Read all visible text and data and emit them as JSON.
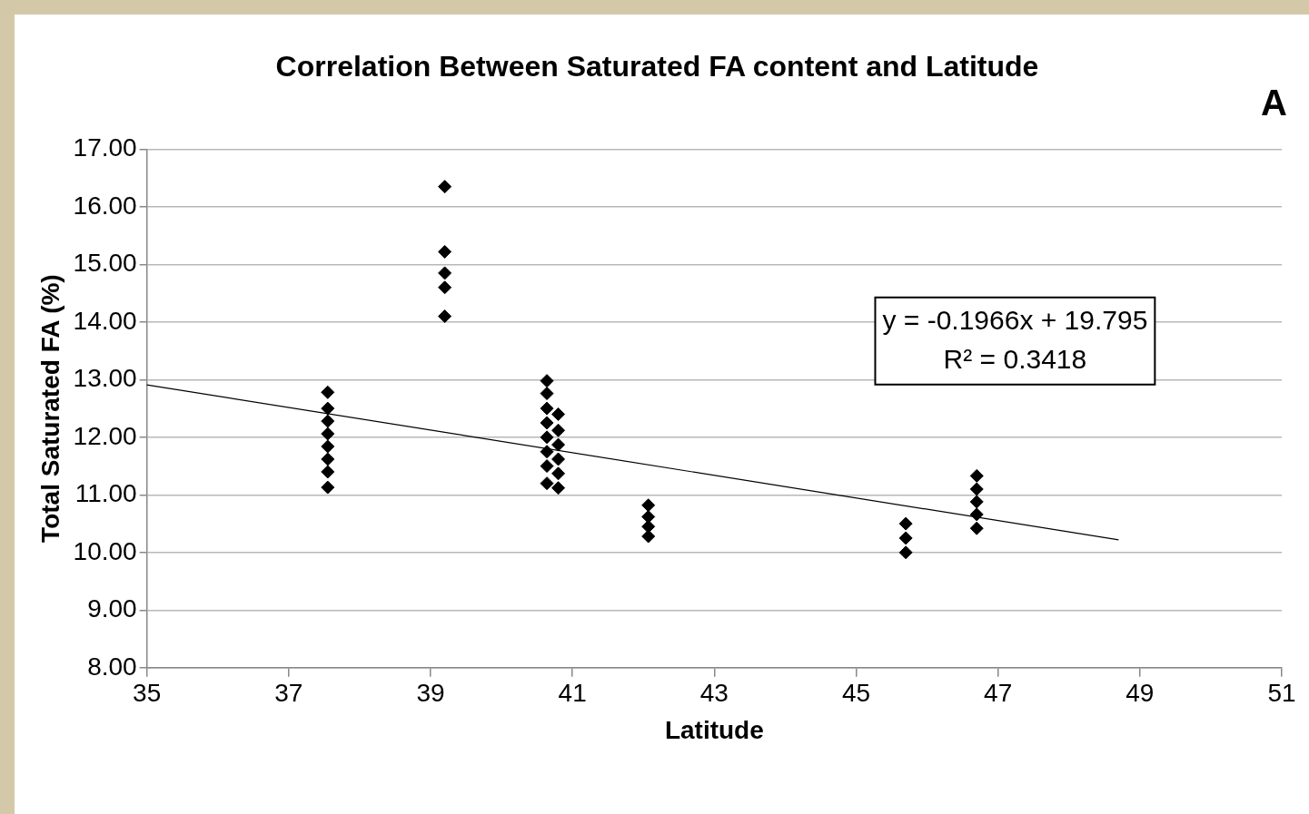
{
  "chart_data": {
    "type": "scatter",
    "title": "Correlation Between Saturated FA content and Latitude",
    "xlabel": "Latitude",
    "ylabel": "Total Saturated FA (%)",
    "xlim": [
      35,
      51
    ],
    "xticks": [
      35,
      37,
      39,
      41,
      43,
      45,
      47,
      49,
      51
    ],
    "ylim": [
      8,
      17
    ],
    "yticks": [
      {
        "value": 8,
        "label": "8.00"
      },
      {
        "value": 9,
        "label": "9.00"
      },
      {
        "value": 10,
        "label": "10.00"
      },
      {
        "value": 11,
        "label": "11.00"
      },
      {
        "value": 12,
        "label": "12.00"
      },
      {
        "value": 13,
        "label": "13.00"
      },
      {
        "value": 14,
        "label": "14.00"
      },
      {
        "value": 15,
        "label": "15.00"
      },
      {
        "value": 16,
        "label": "16.00"
      },
      {
        "value": 17,
        "label": "17.00"
      }
    ],
    "grid": "y",
    "legend": false,
    "annotations": [
      "y = -0.1966x + 19.795",
      "R² = 0.3418",
      "A"
    ],
    "series": [
      {
        "type": "scatter",
        "color": "#000000",
        "marker": "diamond",
        "x": [
          37.55,
          37.55,
          37.55,
          37.55,
          37.55,
          37.55,
          37.55,
          37.55,
          39.2,
          39.2,
          39.2,
          39.2,
          39.2,
          40.64,
          40.64,
          40.64,
          40.64,
          40.64,
          40.64,
          40.64,
          40.64,
          40.8,
          40.8,
          40.8,
          40.8,
          40.8,
          40.8,
          42.07,
          42.07,
          42.07,
          42.07,
          45.7,
          45.7,
          45.7,
          46.7,
          46.7,
          46.7,
          46.7,
          46.7
        ],
        "values": [
          12.78,
          12.5,
          12.28,
          12.06,
          11.84,
          11.62,
          11.4,
          11.13,
          16.35,
          15.22,
          14.85,
          14.6,
          14.1,
          12.98,
          12.76,
          12.5,
          12.25,
          12.0,
          11.75,
          11.5,
          11.2,
          12.4,
          12.12,
          11.87,
          11.62,
          11.37,
          11.12,
          10.82,
          10.62,
          10.45,
          10.28,
          10.5,
          10.25,
          10.0,
          11.33,
          11.1,
          10.88,
          10.66,
          10.42
        ]
      },
      {
        "type": "line",
        "color": "#000000",
        "marker": "none",
        "x": [
          35,
          48.7
        ],
        "values": [
          12.91,
          10.22
        ]
      }
    ]
  }
}
